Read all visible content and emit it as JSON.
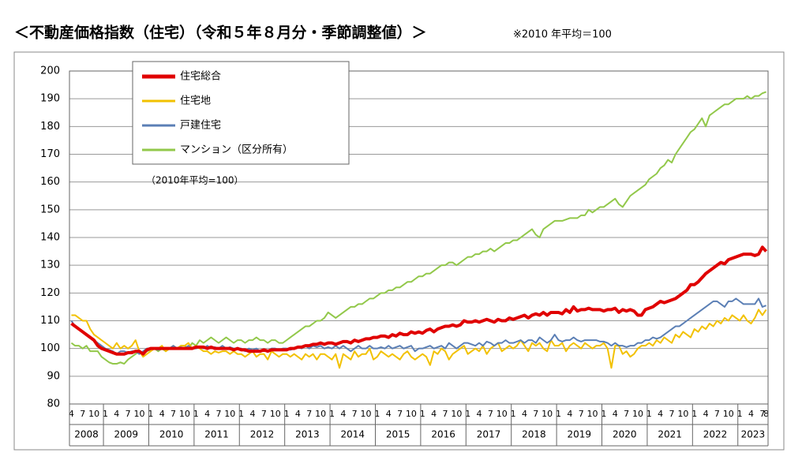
{
  "chart_data": {
    "type": "line",
    "title": "＜不動産価格指数（住宅）（令和５年８月分・季節調整値）＞",
    "subtitle": "※2010 年平均＝100",
    "annotation": "（2010年平均=100）",
    "ylim": [
      80,
      200
    ],
    "yticks": [
      80,
      90,
      100,
      110,
      120,
      130,
      140,
      150,
      160,
      170,
      180,
      190,
      200
    ],
    "grid": true,
    "year_groups": [
      "2008",
      "2009",
      "2010",
      "2011",
      "2012",
      "2013",
      "2014",
      "2015",
      "2016",
      "2017",
      "2018",
      "2019",
      "2020",
      "2021",
      "2022",
      "2023"
    ],
    "categories": [
      "4",
      null,
      null,
      "7",
      null,
      null,
      "10",
      null,
      null,
      "1",
      null,
      null,
      "4",
      null,
      null,
      "7",
      null,
      null,
      "10",
      null,
      null,
      "1",
      null,
      null,
      "4",
      null,
      null,
      "7",
      null,
      null,
      "10",
      null,
      null,
      "1",
      null,
      null,
      "4",
      null,
      null,
      "7",
      null,
      null,
      "10",
      null,
      null,
      "1",
      null,
      null,
      "4",
      null,
      null,
      "7",
      null,
      null,
      "10",
      null,
      null,
      "1",
      null,
      null,
      "4",
      null,
      null,
      "7",
      null,
      null,
      "10",
      null,
      null,
      "1",
      null,
      null,
      "4",
      null,
      null,
      "7",
      null,
      null,
      "10",
      null,
      null,
      "1",
      null,
      null,
      "4",
      null,
      null,
      "7",
      null,
      null,
      "10",
      null,
      null,
      "1",
      null,
      null,
      "4",
      null,
      null,
      "7",
      null,
      null,
      "10",
      null,
      null,
      "1",
      null,
      null,
      "4",
      null,
      null,
      "7",
      null,
      null,
      "10",
      null,
      null,
      "1",
      null,
      null,
      "4",
      null,
      null,
      "7",
      null,
      null,
      "10",
      null,
      null,
      "1",
      null,
      null,
      "4",
      null,
      null,
      "7",
      null,
      null,
      "10",
      null,
      null,
      "1",
      null,
      null,
      "4",
      null,
      null,
      "7",
      null,
      null,
      "10",
      null,
      null,
      "1",
      null,
      null,
      "4",
      null,
      null,
      "7",
      null,
      null,
      "10",
      null,
      null,
      "1",
      null,
      null,
      "4",
      null,
      null,
      "7",
      null,
      null,
      "10",
      null,
      null,
      "1",
      null,
      null,
      "4",
      null,
      null,
      "7",
      "8"
    ],
    "series": [
      {
        "name": "住宅総合",
        "color": "#e00000",
        "width": 4,
        "values": [
          109,
          108,
          107,
          106,
          105,
          104,
          103,
          101,
          100,
          99.5,
          99,
          98.5,
          98,
          98,
          98,
          98.5,
          98.5,
          99,
          99,
          98,
          99.5,
          100,
          100,
          100,
          100,
          100,
          100,
          100,
          100,
          100,
          100,
          100,
          100,
          100.5,
          100.5,
          100.5,
          100,
          100.5,
          100,
          100,
          100,
          100,
          100,
          99.5,
          100,
          99.5,
          99.5,
          99,
          99,
          99,
          99,
          99.5,
          99,
          99.5,
          99.5,
          99.5,
          99.5,
          99.5,
          100,
          100,
          100.5,
          100.5,
          101,
          101,
          101.5,
          101.5,
          102,
          101.5,
          102,
          102,
          101.5,
          102,
          102.5,
          102.5,
          102,
          103,
          102.5,
          103,
          103.5,
          103.5,
          104,
          104,
          104.5,
          104.5,
          104,
          105,
          104.5,
          105.5,
          105,
          105,
          106,
          105.5,
          106,
          105.5,
          106.5,
          107,
          106,
          107,
          107.5,
          108,
          108,
          108.5,
          108,
          108.5,
          110,
          109.5,
          109.5,
          110,
          109.5,
          110,
          110.5,
          110,
          109.5,
          110.5,
          110,
          110,
          111,
          110.5,
          111,
          111.5,
          112,
          111,
          112,
          112.5,
          112,
          113,
          112,
          113,
          113,
          113,
          112.5,
          114,
          113,
          115,
          113.5,
          114,
          114,
          114.5,
          114,
          114,
          114,
          113.5,
          114,
          114,
          114.5,
          113,
          114,
          113.5,
          114,
          113.5,
          112,
          112,
          114,
          114.5,
          115,
          116,
          117,
          116.5,
          117,
          117.5,
          118,
          119,
          120,
          121,
          123,
          123,
          124,
          125.5,
          127,
          128,
          129,
          130,
          131,
          130.5,
          132,
          132.5,
          133,
          133.5,
          134,
          134,
          134,
          133.5,
          134,
          136.5,
          135
        ]
      },
      {
        "name": "住宅地",
        "color": "#f2c100",
        "width": 2,
        "values": [
          112,
          112,
          111,
          110,
          110,
          107,
          105,
          104,
          103,
          102,
          101,
          100,
          102,
          100,
          101,
          100,
          101,
          103,
          99,
          97,
          98,
          99,
          100,
          100,
          101,
          99,
          100,
          101,
          100,
          101,
          101,
          102,
          100,
          101,
          100,
          99,
          99,
          98,
          99,
          98.5,
          99,
          99,
          98,
          99,
          98,
          98,
          97,
          98,
          99,
          97,
          98,
          98,
          96,
          99,
          98,
          97,
          98,
          98,
          97,
          98,
          97,
          96,
          98,
          97,
          98,
          96,
          98,
          98,
          97,
          96,
          98,
          93,
          98,
          97,
          96,
          99,
          97,
          98,
          98,
          100,
          96,
          97,
          99,
          98,
          97,
          98,
          97,
          96,
          98,
          99,
          97,
          96,
          97,
          98,
          97,
          94,
          99,
          98,
          100,
          99,
          96,
          98,
          99,
          100,
          101,
          98,
          99,
          100,
          99,
          101,
          98,
          100,
          101,
          102,
          99,
          100,
          101,
          100,
          101,
          103,
          101,
          99,
          102,
          101,
          102,
          100,
          99,
          103,
          101,
          101,
          102,
          99,
          101,
          102,
          101,
          100,
          102,
          101,
          100,
          101,
          101,
          102,
          100,
          93,
          101,
          101,
          98,
          99,
          97,
          98,
          100,
          101,
          101,
          102,
          101,
          103,
          102,
          104,
          103,
          102,
          105,
          104,
          106,
          105,
          104,
          107,
          106,
          108,
          107,
          109,
          108,
          110,
          109,
          111,
          110,
          112,
          111,
          110,
          112,
          110,
          109,
          111,
          114,
          112,
          114
        ]
      },
      {
        "name": "戸建住宅",
        "color": "#5b7fb5",
        "width": 2,
        "values": [
          110,
          108,
          107,
          106,
          105,
          104,
          103,
          102,
          101,
          100,
          99.5,
          99,
          98,
          99,
          99,
          98.5,
          99,
          99,
          98,
          99,
          100,
          100,
          100,
          99.5,
          100,
          100,
          100,
          101,
          100,
          100.5,
          100,
          101,
          100,
          100,
          100.5,
          100,
          101,
          100,
          100.5,
          100,
          101,
          100,
          100.5,
          100,
          100,
          100,
          99,
          100,
          99.5,
          100,
          99,
          99.5,
          99,
          100,
          100,
          99.5,
          100,
          100,
          99.5,
          100,
          100.5,
          100,
          101,
          100,
          101,
          100.5,
          101,
          100,
          100.5,
          100,
          101,
          100,
          101,
          100,
          99,
          100,
          101,
          100,
          100,
          101,
          100,
          100,
          100.5,
          100,
          101,
          100,
          100.5,
          101,
          100,
          100.5,
          101,
          99,
          100,
          100,
          100.5,
          101,
          100,
          100.5,
          101,
          100,
          102,
          101,
          100,
          101,
          102,
          102,
          101.5,
          101,
          102,
          101,
          102.5,
          102,
          101,
          102,
          102,
          103,
          102,
          102,
          102.5,
          103,
          102,
          103,
          103,
          102,
          104,
          103,
          102,
          103,
          105,
          103,
          102.5,
          103,
          103,
          104,
          103,
          102.5,
          103,
          103,
          103,
          103,
          102.5,
          102.5,
          102,
          101,
          102,
          101,
          101,
          100.5,
          101,
          101,
          102,
          102,
          103,
          103,
          104,
          103.5,
          104,
          105,
          106,
          107,
          108,
          108,
          109,
          110,
          111,
          112,
          113,
          114,
          115,
          116,
          117,
          117,
          116,
          115,
          117,
          117,
          118,
          117,
          116,
          116,
          116,
          116,
          118,
          115,
          115.5
        ]
      },
      {
        "name": "マンション（区分所有）",
        "color": "#92c84a",
        "width": 2,
        "values": [
          102,
          101,
          101,
          100,
          101,
          99,
          99,
          99,
          97,
          96,
          95,
          94.5,
          94.5,
          95,
          94.5,
          96,
          97,
          98,
          99,
          98,
          99,
          99.5,
          100,
          99,
          100,
          99,
          100,
          100.5,
          100,
          101,
          101,
          100,
          102,
          101,
          103,
          102,
          103,
          104,
          103,
          102,
          103,
          104,
          103,
          102,
          103,
          103,
          102,
          103,
          103,
          104,
          103,
          103,
          102,
          103,
          103,
          102,
          102,
          103,
          104,
          105,
          106,
          107,
          108,
          108,
          109,
          110,
          110,
          111,
          113,
          112,
          111,
          112,
          113,
          114,
          115,
          115,
          116,
          116,
          117,
          118,
          118,
          119,
          120,
          120,
          121,
          121,
          122,
          122,
          123,
          124,
          124,
          125,
          126,
          126,
          127,
          127,
          128,
          129,
          130,
          130,
          131,
          131,
          130,
          131,
          132,
          133,
          133,
          134,
          134,
          135,
          135,
          136,
          135,
          136,
          137,
          138,
          138,
          139,
          139,
          140,
          141,
          142,
          143,
          141,
          140,
          143,
          144,
          145,
          146,
          146,
          146,
          146.5,
          147,
          147,
          147,
          148,
          148,
          150,
          149,
          150,
          151,
          151,
          152,
          153,
          154,
          152,
          151,
          153,
          155,
          156,
          157,
          158,
          159,
          161,
          162,
          163,
          165,
          166,
          168,
          167,
          170,
          172,
          174,
          176,
          178,
          179,
          181,
          183,
          180,
          184,
          185,
          186,
          187,
          188,
          188,
          189,
          190,
          190,
          190,
          191,
          190,
          191,
          191,
          192,
          192.5
        ]
      }
    ]
  }
}
